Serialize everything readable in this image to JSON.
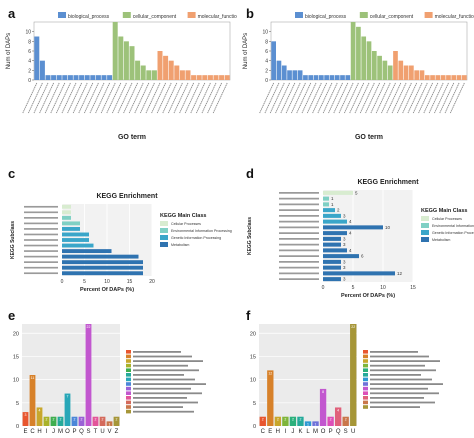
{
  "colors": {
    "biological_process": "#5b8fd1",
    "cellular_component": "#9dc27a",
    "molecular_function": "#f0a070",
    "kegg_cellular_processes": "#d8ecd0",
    "kegg_env_info": "#7fd0c4",
    "kegg_genetic_info": "#3aa6c9",
    "kegg_metabolism": "#2f73b0",
    "cog_palette": [
      "#e8562f",
      "#d7812a",
      "#e2a13a",
      "#c8a72c",
      "#a9b22a",
      "#7fb53a",
      "#3fae4f",
      "#2bb07c",
      "#25aa9a",
      "#28a7b8",
      "#2e9ad3",
      "#4b86d8",
      "#6f72d9",
      "#9a62d6",
      "#c257cf",
      "#dd4fb8",
      "#e3559a",
      "#e0607a",
      "#d46a5c",
      "#c9764a",
      "#b8863c",
      "#a69638",
      "#8c9e3c"
    ]
  },
  "panels": {
    "a": {
      "letter": "a"
    },
    "b": {
      "letter": "b"
    },
    "c": {
      "letter": "c"
    },
    "d": {
      "letter": "d"
    },
    "e": {
      "letter": "e"
    },
    "f": {
      "letter": "f"
    }
  },
  "chart_data": [
    {
      "id": "a",
      "type": "bar",
      "xlabel": "GO term",
      "ylabel": "Num of DAPs",
      "ylim": [
        0,
        12
      ],
      "yticks": [
        0,
        2,
        4,
        6,
        8,
        10
      ],
      "legend": [
        "biological_process",
        "cellular_component",
        "molecular_function"
      ],
      "groups": [
        {
          "name": "biological_process",
          "values": [
            9,
            4,
            1,
            1,
            1,
            1,
            1,
            1,
            1,
            1,
            1,
            1,
            1,
            1
          ]
        },
        {
          "name": "cellular_component",
          "values": [
            12,
            9,
            8,
            7,
            4,
            3,
            2,
            2
          ]
        },
        {
          "name": "molecular_function",
          "values": [
            6,
            5,
            4,
            3,
            2,
            2,
            1,
            1,
            1,
            1,
            1,
            1,
            1
          ]
        }
      ]
    },
    {
      "id": "b",
      "type": "bar",
      "xlabel": "GO term",
      "ylabel": "Num of DAPs",
      "ylim": [
        0,
        12
      ],
      "yticks": [
        0,
        2,
        4,
        6,
        8,
        10
      ],
      "legend": [
        "biological_process",
        "cellular_component",
        "molecular_function"
      ],
      "groups": [
        {
          "name": "biological_process",
          "values": [
            8,
            4,
            3,
            2,
            2,
            2,
            1,
            1,
            1,
            1,
            1,
            1,
            1,
            1,
            1
          ]
        },
        {
          "name": "cellular_component",
          "values": [
            12,
            11,
            9,
            8,
            6,
            5,
            4,
            3
          ]
        },
        {
          "name": "molecular_function",
          "values": [
            6,
            4,
            3,
            3,
            2,
            2,
            1,
            1,
            1,
            1,
            1,
            1,
            1,
            1
          ]
        }
      ]
    },
    {
      "id": "c",
      "type": "bar",
      "orientation": "horizontal",
      "title": "KEGG Enrichment",
      "xlabel": "Percent Of DAPs (%)",
      "ylabel": "KEGG Subclass",
      "xlim": [
        0,
        20
      ],
      "xticks": [
        0,
        5,
        10,
        15,
        20
      ],
      "legend_title": "KEGG Main Class",
      "legend": [
        "Cellular Processes",
        "Environmental Information Processing",
        "Genetic Information Processing",
        "Metabolism"
      ],
      "categories": [
        "",
        "",
        "",
        "",
        "",
        "",
        "",
        "",
        "",
        "",
        "",
        "",
        ""
      ],
      "values": [
        2,
        2,
        2,
        4,
        4,
        6,
        6,
        7,
        11,
        17,
        18,
        18,
        18
      ],
      "classes": [
        0,
        0,
        1,
        1,
        2,
        2,
        2,
        2,
        3,
        3,
        3,
        3,
        3
      ],
      "bar_labels": [
        "",
        "",
        "",
        "",
        "",
        "",
        "",
        "",
        "",
        "",
        "",
        "",
        ""
      ]
    },
    {
      "id": "d",
      "type": "bar",
      "orientation": "horizontal",
      "title": "KEGG Enrichment",
      "xlabel": "Percent Of DAPs (%)",
      "ylabel": "KEGG Subclass",
      "xlim": [
        0,
        15
      ],
      "xticks": [
        0,
        5,
        10,
        15
      ],
      "legend_title": "KEGG Main Class",
      "legend": [
        "Cellular Processes",
        "Environmental Information Processing",
        "Genetic Information Processing",
        "Metabolism"
      ],
      "categories": [
        "",
        "",
        "",
        "",
        "",
        "",
        "",
        "",
        "",
        "",
        "",
        "",
        "",
        "",
        "",
        ""
      ],
      "values": [
        5,
        1,
        1,
        2,
        3,
        4,
        10,
        4,
        3,
        3,
        4,
        6,
        3,
        3,
        12,
        3
      ],
      "classes": [
        0,
        1,
        1,
        2,
        2,
        2,
        3,
        3,
        3,
        3,
        3,
        3,
        3,
        3,
        3,
        3
      ],
      "bar_labels": [
        "5",
        "1",
        "1",
        "2",
        "3",
        "4",
        "10",
        "4",
        "3",
        "3",
        "4",
        "6",
        "3",
        "3",
        "12",
        "3"
      ]
    },
    {
      "id": "e",
      "type": "bar",
      "ylim": [
        0,
        22
      ],
      "yticks": [
        0,
        5,
        10,
        15,
        20
      ],
      "categories": [
        "E",
        "C",
        "H",
        "I",
        "J",
        "M",
        "O",
        "P",
        "Q",
        "S",
        "T",
        "U",
        "V",
        "Z"
      ],
      "values": [
        3,
        11,
        4,
        2,
        2,
        2,
        7,
        2,
        2,
        22,
        2,
        2,
        1,
        2
      ],
      "legend": [
        "",
        "",
        "",
        "",
        "",
        "",
        "",
        "",
        "",
        "",
        "",
        "",
        "",
        ""
      ]
    },
    {
      "id": "f",
      "type": "bar",
      "ylim": [
        0,
        22
      ],
      "yticks": [
        0,
        5,
        10,
        15,
        20
      ],
      "categories": [
        "C",
        "E",
        "H",
        "I",
        "J",
        "K",
        "L",
        "M",
        "O",
        "P",
        "Q",
        "S",
        "U"
      ],
      "values": [
        2,
        12,
        2,
        2,
        2,
        2,
        1,
        1,
        8,
        2,
        4,
        2,
        22
      ],
      "legend": [
        "",
        "",
        "",
        "",
        "",
        "",
        "",
        "",
        "",
        "",
        "",
        "",
        ""
      ]
    }
  ]
}
